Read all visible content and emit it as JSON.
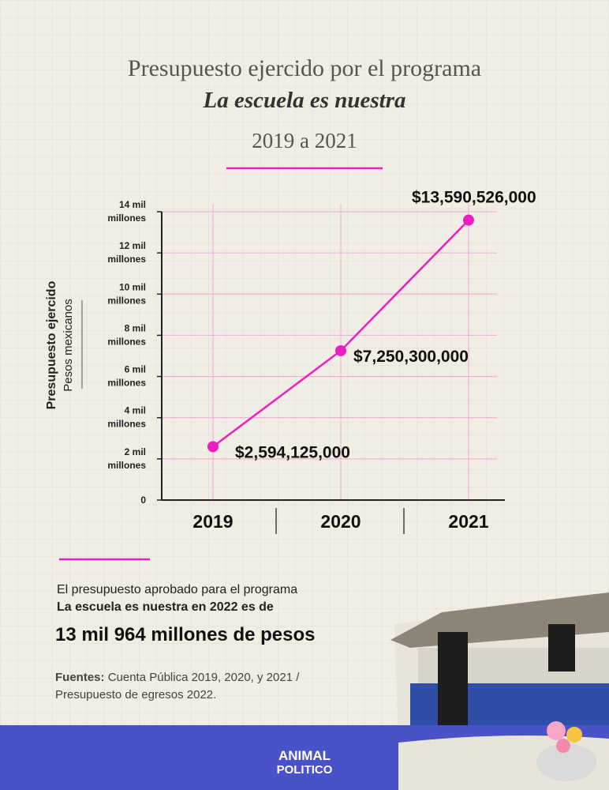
{
  "chart_data": {
    "type": "line",
    "title": "Presupuesto ejercido por el programa",
    "subtitle": "La escuela es nuestra",
    "period": "2019 a 2021",
    "y_label": "Presupuesto ejercido",
    "y_sublabel": "Pesos mexicanos",
    "categories": [
      "2019",
      "2020",
      "2021"
    ],
    "values": [
      2594125000,
      7250300000,
      13590526000
    ],
    "value_labels": [
      "$2,594,125,000",
      "$7,250,300,000",
      "$13,590,526,000"
    ],
    "color": "#e91fbf",
    "ylim": [
      0,
      14000000000
    ],
    "yticks": [
      0,
      {
        "value": 2000000000,
        "label": "2 mil millones"
      },
      {
        "value": 4000000000,
        "label": "4 mil millones"
      },
      {
        "value": 6000000000,
        "label": "6 mil millones"
      },
      {
        "value": 8000000000,
        "label": "8 mil millones"
      },
      {
        "value": 10000000000,
        "label": "10 mil millones"
      },
      {
        "value": 12000000000,
        "label": "12 mil millones"
      },
      {
        "value": 14000000000,
        "label": "14 mil millones"
      }
    ],
    "grid": true
  },
  "note": {
    "line1": "El presupuesto aprobado para el programa",
    "line2": "La escuela es nuestra en 2022 es de",
    "highlight": "13 mil 964 millones de pesos"
  },
  "sources": {
    "label": "Fuentes:",
    "line1": "Cuenta Pública 2019, 2020, y 2021 /",
    "line2": "Presupuesto de egresos 2022."
  },
  "footer": {
    "logo_top": "ANIMAL",
    "logo_bottom": "POLITICO"
  }
}
